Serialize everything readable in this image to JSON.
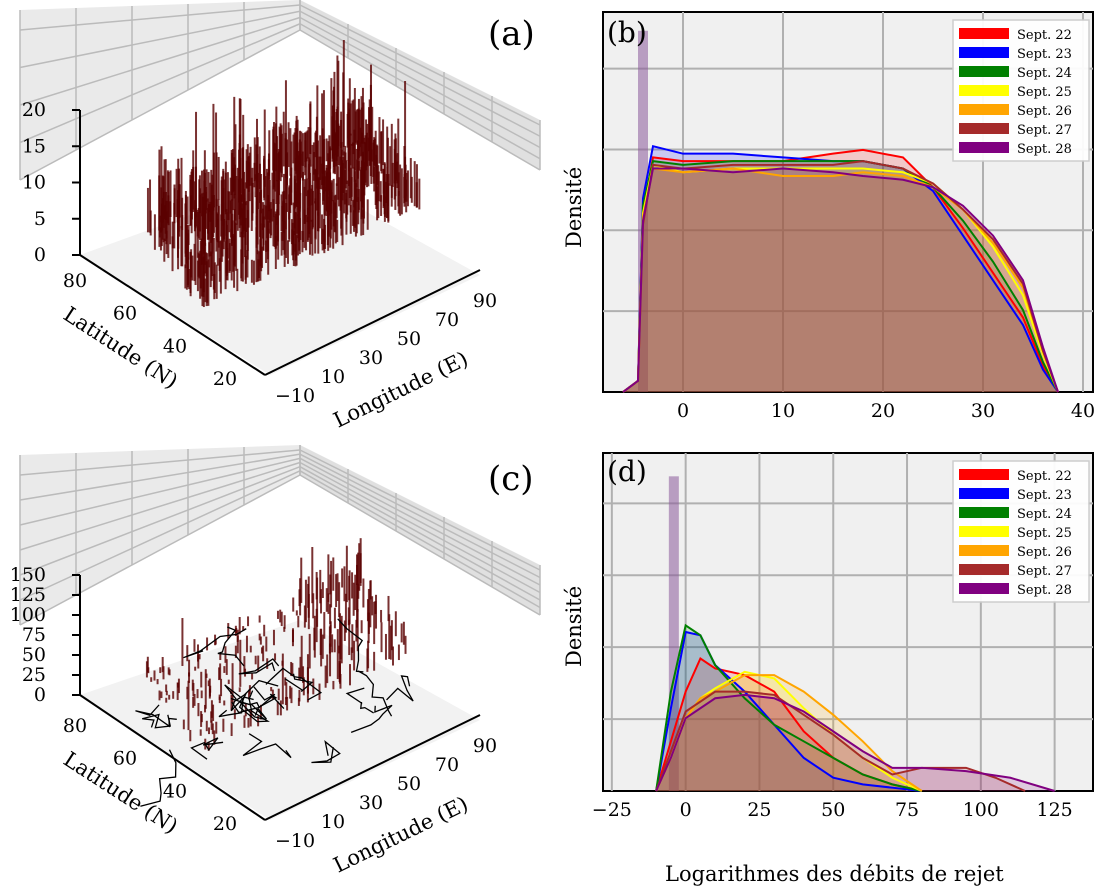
{
  "chart_data": [
    {
      "panel": "(a)",
      "type": "3d-bar",
      "zticks": [
        "0",
        "5",
        "10",
        "15",
        "20"
      ],
      "zlim": [
        0,
        20
      ],
      "latitude_ticks": [
        "20",
        "40",
        "60",
        "80"
      ],
      "longitude_ticks": [
        "−10",
        "10",
        "30",
        "50",
        "70",
        "90"
      ],
      "xlabel": "Longitude (E)",
      "ylabel": "Latitude (N)",
      "bar_color": "#5a0000",
      "description_values": {
        "lat_range": [
          35,
          72
        ],
        "lon_range": [
          -10,
          60
        ],
        "max_height": 20
      }
    },
    {
      "panel": "(b)",
      "type": "area",
      "ylabel": "Densité",
      "xticks": [
        "0",
        "10",
        "20",
        "30",
        "40"
      ],
      "xlim": [
        -8,
        41
      ],
      "ylim": [
        0,
        1
      ],
      "grid": true,
      "legend_position": "top-right",
      "series": [
        {
          "name": "Sept. 22",
          "color": "#ff0000",
          "x": [
            -6,
            -4.5,
            -4,
            -3,
            0,
            5,
            10,
            15,
            18,
            22,
            25,
            28,
            31,
            34,
            36,
            37.5
          ],
          "y": [
            0,
            0.03,
            0.48,
            0.63,
            0.62,
            0.62,
            0.62,
            0.64,
            0.65,
            0.63,
            0.55,
            0.44,
            0.32,
            0.2,
            0.07,
            0
          ]
        },
        {
          "name": "Sept. 23",
          "color": "#0000ff",
          "x": [
            -6,
            -4.5,
            -4,
            -3,
            0,
            5,
            10,
            15,
            18,
            22,
            25,
            28,
            31,
            34,
            36,
            37.5
          ],
          "y": [
            0,
            0.03,
            0.52,
            0.66,
            0.64,
            0.64,
            0.63,
            0.62,
            0.62,
            0.6,
            0.54,
            0.42,
            0.3,
            0.18,
            0.06,
            0
          ]
        },
        {
          "name": "Sept. 24",
          "color": "#008000",
          "x": [
            -6,
            -4.5,
            -4,
            -3,
            0,
            5,
            10,
            15,
            18,
            22,
            25,
            28,
            31,
            34,
            36,
            37.5
          ],
          "y": [
            0,
            0.03,
            0.5,
            0.62,
            0.61,
            0.62,
            0.62,
            0.62,
            0.62,
            0.6,
            0.55,
            0.46,
            0.35,
            0.22,
            0.08,
            0
          ]
        },
        {
          "name": "Sept. 25",
          "color": "#ffff00",
          "x": [
            -6,
            -4.5,
            -4,
            -3,
            0,
            5,
            10,
            15,
            18,
            22,
            25,
            28,
            31,
            34,
            36,
            37.5
          ],
          "y": [
            0,
            0.03,
            0.48,
            0.61,
            0.59,
            0.6,
            0.6,
            0.6,
            0.6,
            0.59,
            0.56,
            0.49,
            0.39,
            0.26,
            0.1,
            0
          ]
        },
        {
          "name": "Sept. 26",
          "color": "#ffa500",
          "x": [
            -6,
            -4.5,
            -4,
            -3,
            0,
            5,
            10,
            15,
            18,
            22,
            25,
            28,
            31,
            34,
            36,
            37.5
          ],
          "y": [
            0,
            0.03,
            0.47,
            0.6,
            0.59,
            0.6,
            0.58,
            0.58,
            0.59,
            0.58,
            0.55,
            0.49,
            0.4,
            0.28,
            0.11,
            0
          ]
        },
        {
          "name": "Sept. 27",
          "color": "#a52a2a",
          "x": [
            -6,
            -4.5,
            -4,
            -3,
            0,
            5,
            10,
            15,
            18,
            22,
            25,
            28,
            31,
            34,
            36,
            37.5
          ],
          "y": [
            0,
            0.03,
            0.45,
            0.61,
            0.6,
            0.61,
            0.61,
            0.61,
            0.62,
            0.6,
            0.56,
            0.49,
            0.41,
            0.29,
            0.11,
            0
          ]
        },
        {
          "name": "Sept. 28",
          "color": "#800080",
          "x": [
            -6,
            -4.5,
            -4,
            -3,
            0,
            5,
            10,
            15,
            18,
            22,
            25,
            28,
            31,
            34,
            36,
            37.5
          ],
          "y": [
            0,
            0.03,
            0.46,
            0.6,
            0.6,
            0.59,
            0.6,
            0.59,
            0.58,
            0.57,
            0.55,
            0.5,
            0.42,
            0.3,
            0.12,
            0
          ]
        }
      ],
      "spike": {
        "x": -4,
        "y": 0.97
      }
    },
    {
      "panel": "(c)",
      "type": "3d-bar",
      "zticks": [
        "0",
        "25",
        "50",
        "75",
        "100",
        "125",
        "150"
      ],
      "zlim": [
        0,
        150
      ],
      "latitude_ticks": [
        "20",
        "40",
        "60",
        "80"
      ],
      "longitude_ticks": [
        "−10",
        "10",
        "30",
        "50",
        "70",
        "90"
      ],
      "xlabel": "Longitude (E)",
      "ylabel": "Latitude (N)",
      "bar_color": "#5a0000",
      "description_values": {
        "lat_range": [
          35,
          72
        ],
        "lon_range": [
          -10,
          60
        ],
        "max_height": 150
      }
    },
    {
      "panel": "(d)",
      "type": "area",
      "ylabel": "Densité",
      "xlabel": "Logarithmes des débits de rejet",
      "xticks": [
        "−25",
        "0",
        "25",
        "50",
        "75",
        "100",
        "125"
      ],
      "xlim": [
        -28,
        138
      ],
      "ylim": [
        0,
        1
      ],
      "grid": true,
      "legend_position": "top-right",
      "series": [
        {
          "name": "Sept. 22",
          "color": "#ff0000",
          "x": [
            -10,
            -5,
            0,
            5,
            10,
            20,
            30,
            40,
            50,
            60,
            70,
            80
          ],
          "y": [
            0,
            0.15,
            0.3,
            0.4,
            0.37,
            0.35,
            0.3,
            0.18,
            0.1,
            0.05,
            0.02,
            0
          ]
        },
        {
          "name": "Sept. 23",
          "color": "#0000ff",
          "x": [
            -10,
            -5,
            0,
            5,
            10,
            20,
            30,
            40,
            50,
            60,
            70,
            80
          ],
          "y": [
            0,
            0.25,
            0.48,
            0.47,
            0.38,
            0.3,
            0.2,
            0.1,
            0.04,
            0.02,
            0.01,
            0
          ]
        },
        {
          "name": "Sept. 24",
          "color": "#008000",
          "x": [
            -10,
            -5,
            0,
            5,
            10,
            20,
            30,
            40,
            50,
            60,
            70,
            80
          ],
          "y": [
            0,
            0.3,
            0.5,
            0.47,
            0.38,
            0.28,
            0.2,
            0.15,
            0.1,
            0.05,
            0.02,
            0
          ]
        },
        {
          "name": "Sept. 25",
          "color": "#ffff00",
          "x": [
            -10,
            -5,
            0,
            5,
            10,
            20,
            30,
            40,
            50,
            60,
            70,
            80
          ],
          "y": [
            0,
            0.1,
            0.22,
            0.28,
            0.31,
            0.36,
            0.34,
            0.25,
            0.17,
            0.1,
            0.04,
            0
          ]
        },
        {
          "name": "Sept. 26",
          "color": "#ffa500",
          "x": [
            -10,
            -5,
            0,
            5,
            10,
            20,
            30,
            40,
            50,
            60,
            70,
            80
          ],
          "y": [
            0,
            0.1,
            0.22,
            0.28,
            0.3,
            0.35,
            0.35,
            0.3,
            0.23,
            0.15,
            0.06,
            0
          ]
        },
        {
          "name": "Sept. 27",
          "color": "#a52a2a",
          "x": [
            -10,
            -5,
            0,
            10,
            20,
            30,
            40,
            50,
            60,
            70,
            80,
            95,
            105,
            115
          ],
          "y": [
            0,
            0.12,
            0.24,
            0.3,
            0.3,
            0.29,
            0.23,
            0.17,
            0.1,
            0.05,
            0.07,
            0.07,
            0.04,
            0
          ]
        },
        {
          "name": "Sept. 28",
          "color": "#800080",
          "x": [
            -10,
            -5,
            0,
            10,
            20,
            30,
            40,
            50,
            60,
            70,
            80,
            95,
            110,
            125
          ],
          "y": [
            0,
            0.1,
            0.22,
            0.28,
            0.29,
            0.28,
            0.24,
            0.18,
            0.12,
            0.07,
            0.07,
            0.06,
            0.04,
            0
          ]
        }
      ],
      "spike": {
        "x": -4,
        "y": 0.95
      }
    }
  ]
}
